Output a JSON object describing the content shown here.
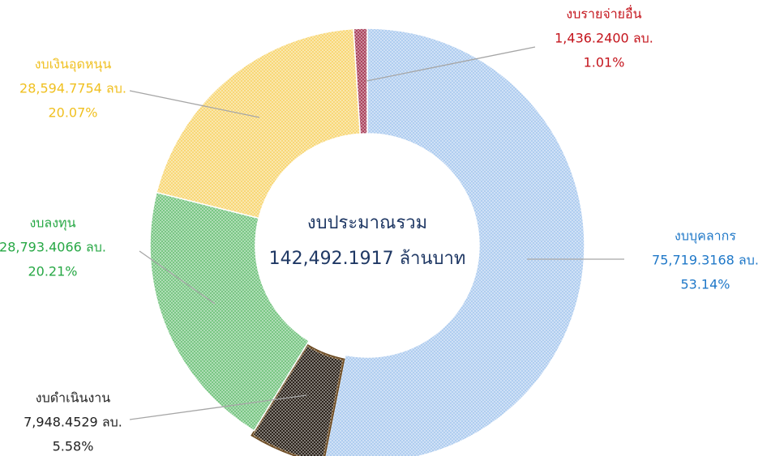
{
  "chart_data": {
    "type": "donut",
    "center_title": "งบประมาณรวม",
    "center_subtitle": "142,492.1917 ล้านบาท",
    "categories": [
      "งบบุคลากร",
      "งบดำเนินงาน",
      "งบลงทุน",
      "งบเงินอุดหนุน",
      "งบรายจ่ายอื่น"
    ],
    "values": [
      75719.3168,
      7948.4529,
      28793.4066,
      28594.7754,
      1436.24
    ],
    "value_labels": [
      "75,719.3168 ลบ.",
      "7,948.4529 ลบ.",
      "28,793.4066 ลบ.",
      "28,594.7754 ลบ.",
      "1,436.2400 ลบ."
    ],
    "percentages": [
      53.14,
      5.58,
      20.21,
      20.07,
      1.01
    ],
    "percentage_labels": [
      "53.14%",
      "5.58%",
      "20.21%",
      "20.07%",
      "1.01%"
    ],
    "colors": [
      "#a9c9ee",
      "#1c130a",
      "#6fc27a",
      "#f7d46c",
      "#a3334f"
    ],
    "label_colors": [
      "#1f78c8",
      "#222222",
      "#27a845",
      "#f0c020",
      "#c4141c"
    ]
  }
}
